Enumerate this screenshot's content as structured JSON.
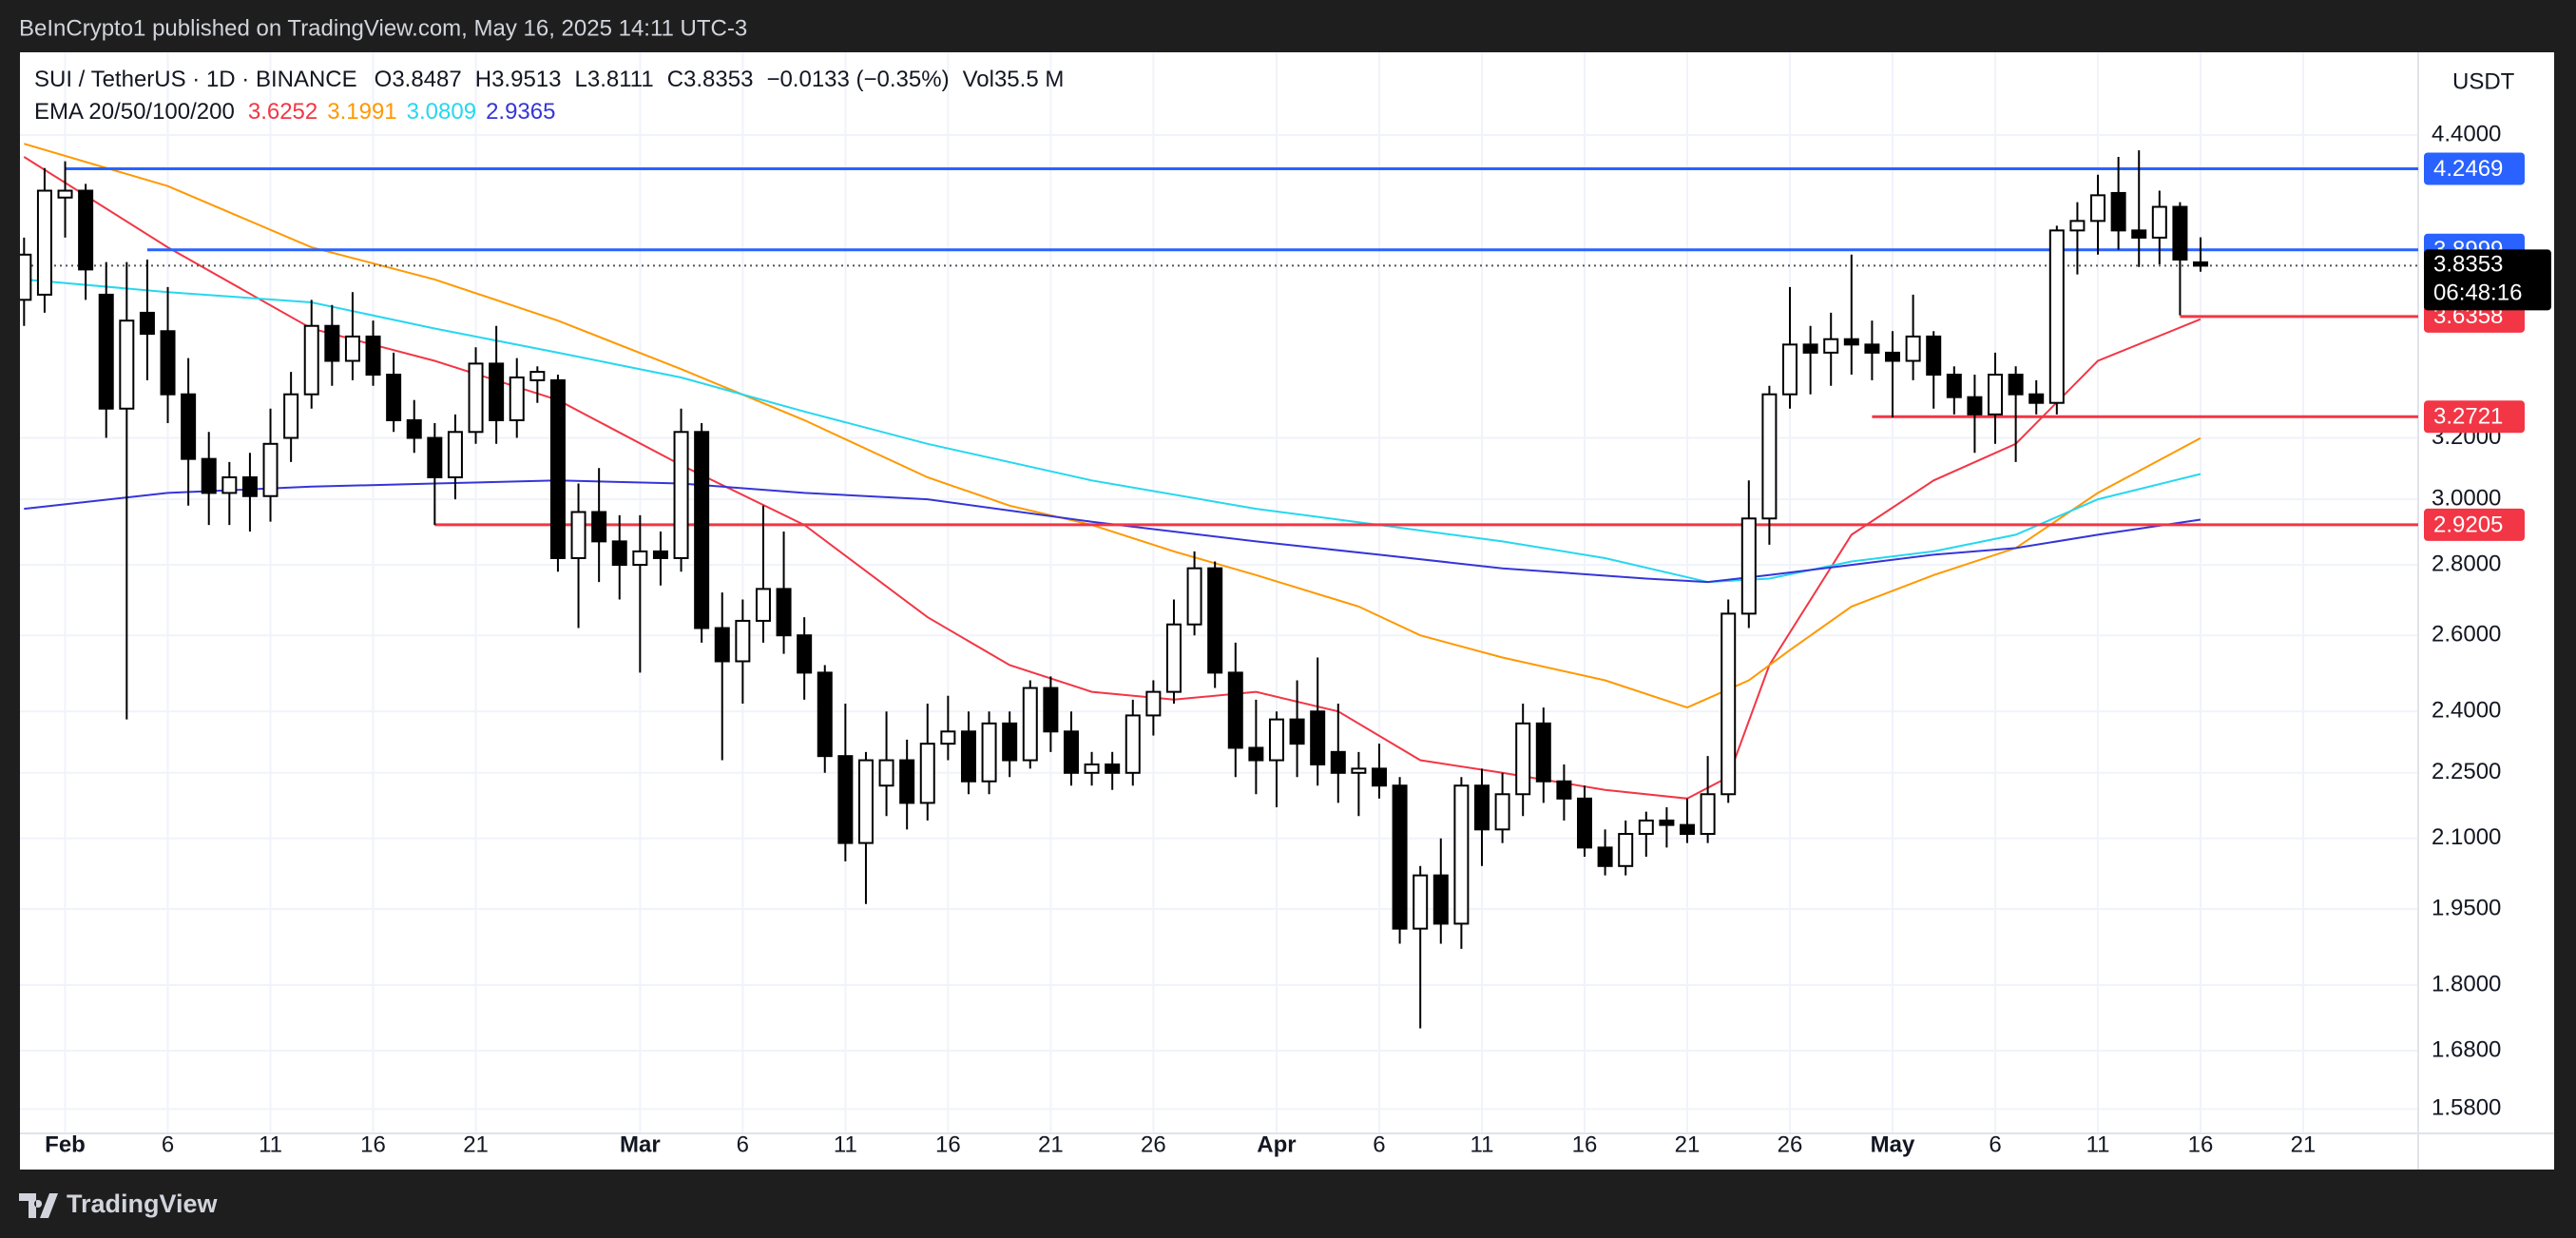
{
  "header": {
    "text": "BeInCrypto1 published on TradingView.com, May 16, 2025 14:11 UTC-3"
  },
  "footer": {
    "brand": "TradingView"
  },
  "chart_data": {
    "type": "candlestick",
    "symbol": "SUI / TetherUS · 1D · BINANCE",
    "currency": "USDT",
    "ohlc_letters": [
      "O",
      "H",
      "L",
      "C"
    ],
    "change_label": "−0.0133 (−0.35%)",
    "volume_label": "Vol",
    "volume_value_label": "35.5 M",
    "countdown": "06:48:16",
    "indicator_label": "EMA 20/50/100/200",
    "up_color": "#ffffff",
    "down_color": "#000000",
    "log": true,
    "grid": true,
    "xlim": [
      -2.2,
      114.6
    ],
    "ylim": [
      1.54,
      4.8
    ],
    "xticks": [
      {
        "value": 0,
        "label": "Feb"
      },
      {
        "value": 5,
        "label": "6"
      },
      {
        "value": 10,
        "label": "11"
      },
      {
        "value": 15,
        "label": "16"
      },
      {
        "value": 20,
        "label": "21"
      },
      {
        "value": 28,
        "label": "Mar"
      },
      {
        "value": 33,
        "label": "6"
      },
      {
        "value": 38,
        "label": "11"
      },
      {
        "value": 43,
        "label": "16"
      },
      {
        "value": 48,
        "label": "21"
      },
      {
        "value": 53,
        "label": "26"
      },
      {
        "value": 59,
        "label": "Apr"
      },
      {
        "value": 64,
        "label": "6"
      },
      {
        "value": 69,
        "label": "11"
      },
      {
        "value": 74,
        "label": "16"
      },
      {
        "value": 79,
        "label": "21"
      },
      {
        "value": 84,
        "label": "26"
      },
      {
        "value": 89,
        "label": "May"
      },
      {
        "value": 94,
        "label": "6"
      },
      {
        "value": 99,
        "label": "11"
      },
      {
        "value": 104,
        "label": "16"
      },
      {
        "value": 109,
        "label": "21"
      }
    ],
    "yticks": [
      {
        "value": 4.4,
        "label": "4.4000"
      },
      {
        "value": 3.2,
        "label": "3.2000"
      },
      {
        "value": 3.0,
        "label": "3.0000"
      },
      {
        "value": 2.8,
        "label": "2.8000"
      },
      {
        "value": 2.6,
        "label": "2.6000"
      },
      {
        "value": 2.4,
        "label": "2.4000"
      },
      {
        "value": 2.25,
        "label": "2.2500"
      },
      {
        "value": 2.1,
        "label": "2.1000"
      },
      {
        "value": 1.95,
        "label": "1.9500"
      },
      {
        "value": 1.8,
        "label": "1.8000"
      },
      {
        "value": 1.68,
        "label": "1.6800"
      },
      {
        "value": 1.58,
        "label": "1.5800"
      }
    ],
    "x": [
      -2,
      -1,
      0,
      1,
      2,
      3,
      4,
      5,
      6,
      7,
      8,
      9,
      10,
      11,
      12,
      13,
      14,
      15,
      16,
      17,
      18,
      19,
      20,
      21,
      22,
      23,
      24,
      25,
      26,
      27,
      28,
      29,
      30,
      31,
      32,
      33,
      34,
      35,
      36,
      37,
      38,
      39,
      40,
      41,
      42,
      43,
      44,
      45,
      46,
      47,
      48,
      49,
      50,
      51,
      52,
      53,
      54,
      55,
      56,
      57,
      58,
      59,
      60,
      61,
      62,
      63,
      64,
      65,
      66,
      67,
      68,
      69,
      70,
      71,
      72,
      73,
      74,
      75,
      76,
      77,
      78,
      79,
      80,
      81,
      82,
      83,
      84,
      85,
      86,
      87,
      88,
      89,
      90,
      91,
      92,
      93,
      94,
      95,
      96,
      97,
      98,
      99,
      100,
      101,
      102,
      103,
      104
    ],
    "open": [
      3.7,
      3.72,
      4.12,
      4.15,
      3.72,
      3.3,
      3.65,
      3.58,
      3.35,
      3.13,
      3.02,
      3.07,
      3.01,
      3.2,
      3.35,
      3.6,
      3.47,
      3.56,
      3.42,
      3.26,
      3.2,
      3.07,
      3.22,
      3.46,
      3.26,
      3.4,
      3.4,
      2.82,
      2.96,
      2.87,
      2.8,
      2.84,
      2.82,
      3.22,
      2.62,
      2.53,
      2.64,
      2.73,
      2.6,
      2.5,
      2.29,
      2.09,
      2.22,
      2.28,
      2.18,
      2.32,
      2.35,
      2.23,
      2.37,
      2.28,
      2.46,
      2.35,
      2.25,
      2.27,
      2.25,
      2.39,
      2.45,
      2.63,
      2.79,
      2.5,
      2.31,
      2.28,
      2.38,
      2.4,
      2.3,
      2.25,
      2.26,
      2.22,
      1.91,
      2.02,
      1.92,
      2.22,
      2.12,
      2.2,
      2.37,
      2.23,
      2.19,
      2.08,
      2.04,
      2.11,
      2.14,
      2.13,
      2.11,
      2.2,
      2.66,
      2.94,
      3.35,
      3.53,
      3.5,
      3.55,
      3.53,
      3.5,
      3.47,
      3.56,
      3.42,
      3.34,
      3.28,
      3.42,
      3.35,
      3.32,
      3.98,
      4.02,
      4.14,
      3.98,
      3.95,
      4.08,
      3.8487
    ],
    "high": [
      3.95,
      4.25,
      4.28,
      4.18,
      3.85,
      3.85,
      3.86,
      3.75,
      3.48,
      3.22,
      3.12,
      3.15,
      3.3,
      3.43,
      3.7,
      3.68,
      3.73,
      3.62,
      3.5,
      3.33,
      3.25,
      3.28,
      3.52,
      3.6,
      3.48,
      3.45,
      3.42,
      3.05,
      3.1,
      2.95,
      2.95,
      2.9,
      3.3,
      3.25,
      2.72,
      2.7,
      2.98,
      2.9,
      2.65,
      2.52,
      2.42,
      2.3,
      2.4,
      2.33,
      2.42,
      2.44,
      2.4,
      2.4,
      2.4,
      2.48,
      2.49,
      2.4,
      2.3,
      2.3,
      2.43,
      2.48,
      2.7,
      2.84,
      2.81,
      2.58,
      2.43,
      2.4,
      2.48,
      2.54,
      2.42,
      2.3,
      2.32,
      2.24,
      2.04,
      2.1,
      2.24,
      2.26,
      2.25,
      2.42,
      2.41,
      2.27,
      2.22,
      2.12,
      2.14,
      2.16,
      2.17,
      2.19,
      2.29,
      2.7,
      3.06,
      3.38,
      3.75,
      3.6,
      3.65,
      3.88,
      3.62,
      3.58,
      3.72,
      3.58,
      3.45,
      3.42,
      3.5,
      3.45,
      3.4,
      4.0,
      4.1,
      4.22,
      4.3,
      4.33,
      4.15,
      4.1,
      3.9513
    ],
    "low": [
      3.6,
      3.65,
      3.95,
      3.7,
      3.2,
      2.38,
      3.4,
      3.25,
      2.98,
      2.92,
      2.92,
      2.9,
      2.93,
      3.12,
      3.3,
      3.38,
      3.4,
      3.38,
      3.22,
      3.15,
      2.92,
      3.0,
      3.18,
      3.18,
      3.2,
      3.32,
      2.78,
      2.62,
      2.75,
      2.7,
      2.5,
      2.74,
      2.78,
      2.58,
      2.28,
      2.42,
      2.58,
      2.55,
      2.43,
      2.25,
      2.05,
      1.96,
      2.15,
      2.12,
      2.14,
      2.28,
      2.2,
      2.2,
      2.24,
      2.26,
      2.3,
      2.22,
      2.22,
      2.21,
      2.22,
      2.34,
      2.42,
      2.6,
      2.46,
      2.24,
      2.2,
      2.17,
      2.24,
      2.22,
      2.18,
      2.15,
      2.19,
      1.88,
      1.72,
      1.88,
      1.87,
      2.04,
      2.09,
      2.15,
      2.18,
      2.14,
      2.06,
      2.02,
      2.02,
      2.06,
      2.08,
      2.09,
      2.09,
      2.18,
      2.62,
      2.86,
      3.3,
      3.35,
      3.38,
      3.42,
      3.4,
      3.27,
      3.4,
      3.3,
      3.28,
      3.15,
      3.18,
      3.12,
      3.28,
      3.28,
      3.8,
      3.88,
      3.9,
      3.83,
      3.84,
      3.64,
      3.8111
    ],
    "close": [
      3.88,
      4.15,
      4.15,
      3.82,
      3.3,
      3.62,
      3.57,
      3.35,
      3.13,
      3.02,
      3.07,
      3.01,
      3.18,
      3.35,
      3.6,
      3.47,
      3.56,
      3.42,
      3.26,
      3.2,
      3.07,
      3.22,
      3.46,
      3.26,
      3.41,
      3.43,
      2.82,
      2.96,
      2.87,
      2.8,
      2.84,
      2.82,
      3.22,
      2.62,
      2.53,
      2.64,
      2.73,
      2.6,
      2.5,
      2.29,
      2.09,
      2.28,
      2.28,
      2.18,
      2.32,
      2.35,
      2.23,
      2.37,
      2.28,
      2.46,
      2.35,
      2.25,
      2.27,
      2.25,
      2.39,
      2.45,
      2.63,
      2.79,
      2.5,
      2.31,
      2.28,
      2.38,
      2.32,
      2.27,
      2.25,
      2.26,
      2.22,
      1.91,
      2.02,
      1.92,
      2.22,
      2.12,
      2.2,
      2.37,
      2.23,
      2.19,
      2.08,
      2.04,
      2.11,
      2.14,
      2.13,
      2.11,
      2.2,
      2.66,
      2.94,
      3.35,
      3.53,
      3.5,
      3.55,
      3.53,
      3.5,
      3.47,
      3.56,
      3.42,
      3.34,
      3.28,
      3.42,
      3.35,
      3.32,
      3.98,
      4.02,
      4.13,
      3.98,
      3.95,
      4.08,
      3.86,
      3.8353
    ],
    "lines": [
      {
        "color": "#f23645",
        "x": [
          -2,
          5,
          12,
          18,
          24,
          30,
          36,
          42,
          46,
          50,
          54,
          58,
          62,
          66,
          70,
          75,
          79,
          81,
          83,
          87,
          91,
          95,
          99,
          104
        ],
        "values": [
          4.3,
          3.91,
          3.59,
          3.47,
          3.33,
          3.11,
          2.92,
          2.65,
          2.52,
          2.45,
          2.43,
          2.45,
          2.4,
          2.28,
          2.25,
          2.21,
          2.19,
          2.24,
          2.52,
          2.89,
          3.06,
          3.18,
          3.47,
          3.6252
        ]
      },
      {
        "color": "#ff9800",
        "x": [
          -2,
          5,
          12,
          18,
          24,
          30,
          36,
          42,
          46,
          50,
          54,
          58,
          63,
          66,
          70,
          75,
          79,
          82,
          84,
          87,
          91,
          95,
          99,
          104
        ],
        "values": [
          4.36,
          4.17,
          3.91,
          3.78,
          3.62,
          3.44,
          3.26,
          3.07,
          2.98,
          2.92,
          2.84,
          2.77,
          2.68,
          2.6,
          2.54,
          2.48,
          2.41,
          2.48,
          2.56,
          2.68,
          2.77,
          2.85,
          3.02,
          3.1991
        ]
      },
      {
        "color": "#26d7f0",
        "x": [
          -2,
          5,
          12,
          18,
          24,
          30,
          36,
          42,
          50,
          58,
          64,
          70,
          75,
          80,
          83,
          87,
          91,
          95,
          99,
          104
        ],
        "values": [
          3.78,
          3.73,
          3.69,
          3.59,
          3.5,
          3.41,
          3.29,
          3.18,
          3.06,
          2.97,
          2.92,
          2.87,
          2.82,
          2.75,
          2.76,
          2.81,
          2.84,
          2.89,
          3.0,
          3.0809
        ]
      },
      {
        "color": "#3535d8",
        "x": [
          -2,
          5,
          12,
          18,
          24,
          30,
          36,
          42,
          50,
          58,
          64,
          70,
          77,
          80,
          83,
          87,
          91,
          95,
          99,
          104
        ],
        "values": [
          2.97,
          3.02,
          3.04,
          3.05,
          3.06,
          3.05,
          3.02,
          3.0,
          2.93,
          2.87,
          2.83,
          2.79,
          2.76,
          2.75,
          2.77,
          2.8,
          2.83,
          2.85,
          2.89,
          2.9365
        ]
      }
    ],
    "levels": [
      {
        "value": 4.2469,
        "from": 0,
        "color": "#2962ff"
      },
      {
        "value": 3.8999,
        "from": 4,
        "color": "#2962ff"
      },
      {
        "value": 3.6358,
        "from": 103,
        "color": "#f23645"
      },
      {
        "value": 3.2721,
        "from": 88,
        "color": "#f23645"
      },
      {
        "value": 2.9205,
        "from": 18,
        "color": "#f23645"
      }
    ]
  }
}
